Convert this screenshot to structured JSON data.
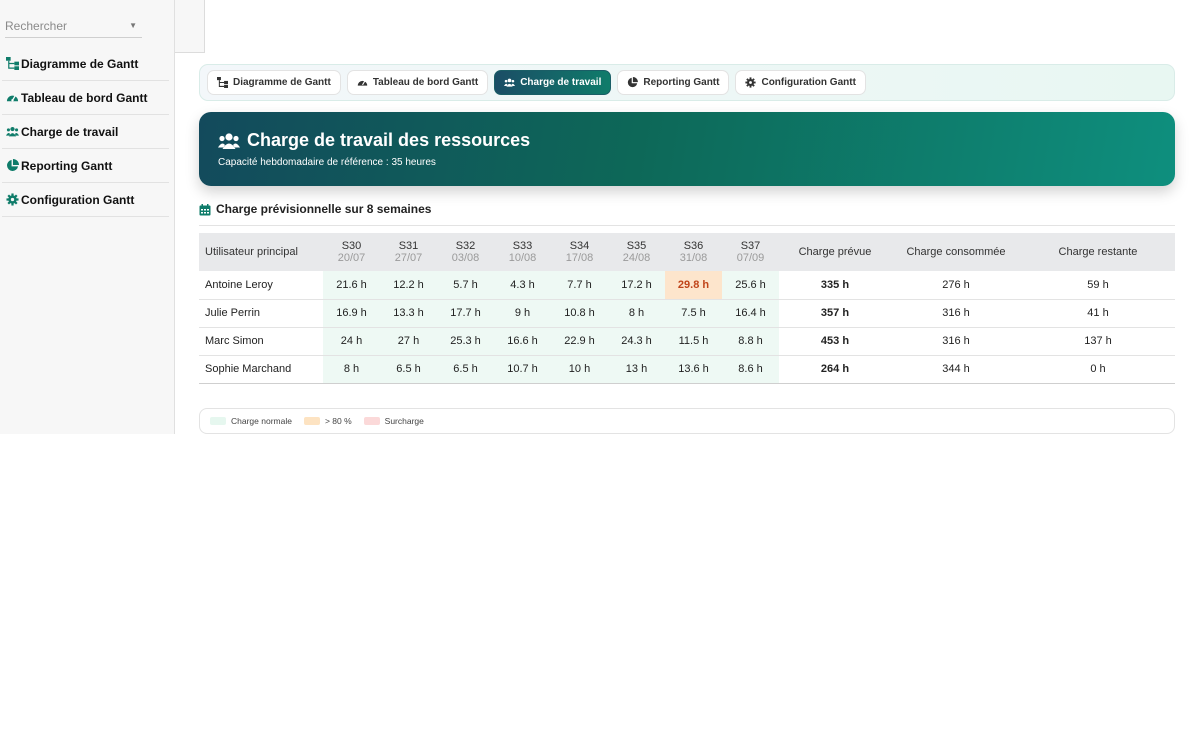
{
  "sidebar": {
    "search_placeholder": "Rechercher",
    "items": [
      {
        "label": "Diagramme de Gantt",
        "icon": "sitemap-icon"
      },
      {
        "label": "Tableau de bord Gantt",
        "icon": "gauge-icon"
      },
      {
        "label": "Charge de travail",
        "icon": "users-icon"
      },
      {
        "label": "Reporting Gantt",
        "icon": "pie-chart-icon"
      },
      {
        "label": "Configuration Gantt",
        "icon": "gear-icon"
      }
    ]
  },
  "tabs": [
    {
      "label": "Diagramme de Gantt",
      "active": false
    },
    {
      "label": "Tableau de bord Gantt",
      "active": false
    },
    {
      "label": "Charge de travail",
      "active": true
    },
    {
      "label": "Reporting Gantt",
      "active": false
    },
    {
      "label": "Configuration Gantt",
      "active": false
    }
  ],
  "banner": {
    "title": "Charge de travail des ressources",
    "subtitle": "Capacité hebdomadaire de référence : 35 heures"
  },
  "section": {
    "title": "Charge prévisionnelle sur 8 semaines"
  },
  "table": {
    "headers": {
      "user": "Utilisateur principal",
      "weeks": [
        {
          "week": "S30",
          "date": "20/07"
        },
        {
          "week": "S31",
          "date": "27/07"
        },
        {
          "week": "S32",
          "date": "03/08"
        },
        {
          "week": "S33",
          "date": "10/08"
        },
        {
          "week": "S34",
          "date": "17/08"
        },
        {
          "week": "S35",
          "date": "24/08"
        },
        {
          "week": "S36",
          "date": "31/08"
        },
        {
          "week": "S37",
          "date": "07/09"
        }
      ],
      "planned": "Charge prévue",
      "consumed": "Charge consommée",
      "remaining": "Charge restante"
    },
    "rows": [
      {
        "user": "Antoine Leroy",
        "weeks": [
          "21.6 h",
          "12.2 h",
          "5.7 h",
          "4.3 h",
          "7.7 h",
          "17.2 h",
          "29.8 h",
          "25.6 h"
        ],
        "planned": "335 h",
        "consumed": "276 h",
        "remaining": "59 h"
      },
      {
        "user": "Julie Perrin",
        "weeks": [
          "16.9 h",
          "13.3 h",
          "17.7 h",
          "9 h",
          "10.8 h",
          "8 h",
          "7.5 h",
          "16.4 h"
        ],
        "planned": "357 h",
        "consumed": "316 h",
        "remaining": "41 h"
      },
      {
        "user": "Marc Simon",
        "weeks": [
          "24 h",
          "27 h",
          "25.3 h",
          "16.6 h",
          "22.9 h",
          "24.3 h",
          "11.5 h",
          "8.8 h"
        ],
        "planned": "453 h",
        "consumed": "316 h",
        "remaining": "137 h"
      },
      {
        "user": "Sophie Marchand",
        "weeks": [
          "8 h",
          "6.5 h",
          "6.5 h",
          "10.7 h",
          "10 h",
          "13 h",
          "13.6 h",
          "8.6 h"
        ],
        "planned": "264 h",
        "consumed": "344 h",
        "remaining": "0 h"
      }
    ]
  },
  "legend": [
    {
      "label": "Charge normale",
      "color": "#e6f7ef"
    },
    {
      "label": "> 80 %",
      "color": "#fde3c2"
    },
    {
      "label": "Surcharge",
      "color": "#fbd9d9"
    }
  ],
  "colors": {
    "accent": "#0f7c6a",
    "banner_start": "#134a5c",
    "banner_end": "#0e8f7e",
    "hot_text": "#c0451a"
  }
}
